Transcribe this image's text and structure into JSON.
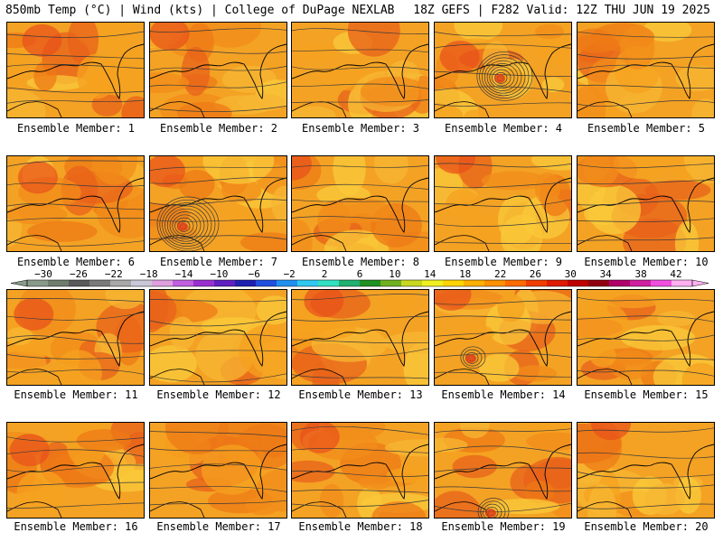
{
  "header": {
    "left_title": "850mb Temp (°C) | Wind (kts) | College of DuPage NEXLAB",
    "right_title": "18Z GEFS | F282 Valid: 12Z THU JUN 19 2025"
  },
  "members": [
    {
      "label": "Ensemble Member: 1"
    },
    {
      "label": "Ensemble Member: 2"
    },
    {
      "label": "Ensemble Member: 3"
    },
    {
      "label": "Ensemble Member: 4"
    },
    {
      "label": "Ensemble Member: 5"
    },
    {
      "label": "Ensemble Member: 6"
    },
    {
      "label": "Ensemble Member: 7"
    },
    {
      "label": "Ensemble Member: 8"
    },
    {
      "label": "Ensemble Member: 9"
    },
    {
      "label": "Ensemble Member: 10"
    },
    {
      "label": "Ensemble Member: 11"
    },
    {
      "label": "Ensemble Member: 12"
    },
    {
      "label": "Ensemble Member: 13"
    },
    {
      "label": "Ensemble Member: 14"
    },
    {
      "label": "Ensemble Member: 15"
    },
    {
      "label": "Ensemble Member: 16"
    },
    {
      "label": "Ensemble Member: 17"
    },
    {
      "label": "Ensemble Member: 18"
    },
    {
      "label": "Ensemble Member: 19"
    },
    {
      "label": "Ensemble Member: 20"
    }
  ],
  "colorbar": {
    "ticks": [
      "−30",
      "−26",
      "−22",
      "−18",
      "−14",
      "−10",
      "−6",
      "−2",
      "2",
      "6",
      "10",
      "14",
      "18",
      "22",
      "26",
      "30",
      "34",
      "38",
      "42"
    ],
    "colors": [
      "#8a9a8a",
      "#6f7d6f",
      "#5a5a5a",
      "#7a7a7a",
      "#a8a8a8",
      "#c8c8d8",
      "#e0a0e0",
      "#c060e0",
      "#9a30d0",
      "#6020c0",
      "#2020b0",
      "#2050e0",
      "#2090f0",
      "#30c8f0",
      "#30e0c0",
      "#20b070",
      "#209020",
      "#70b020",
      "#c8d820",
      "#f0f020",
      "#ffd400",
      "#ffb000",
      "#ff9000",
      "#ff6a00",
      "#f03c00",
      "#e01a00",
      "#c00000",
      "#900010",
      "#b0006a",
      "#d020a0",
      "#f050e0",
      "#ffb0f0"
    ]
  }
}
